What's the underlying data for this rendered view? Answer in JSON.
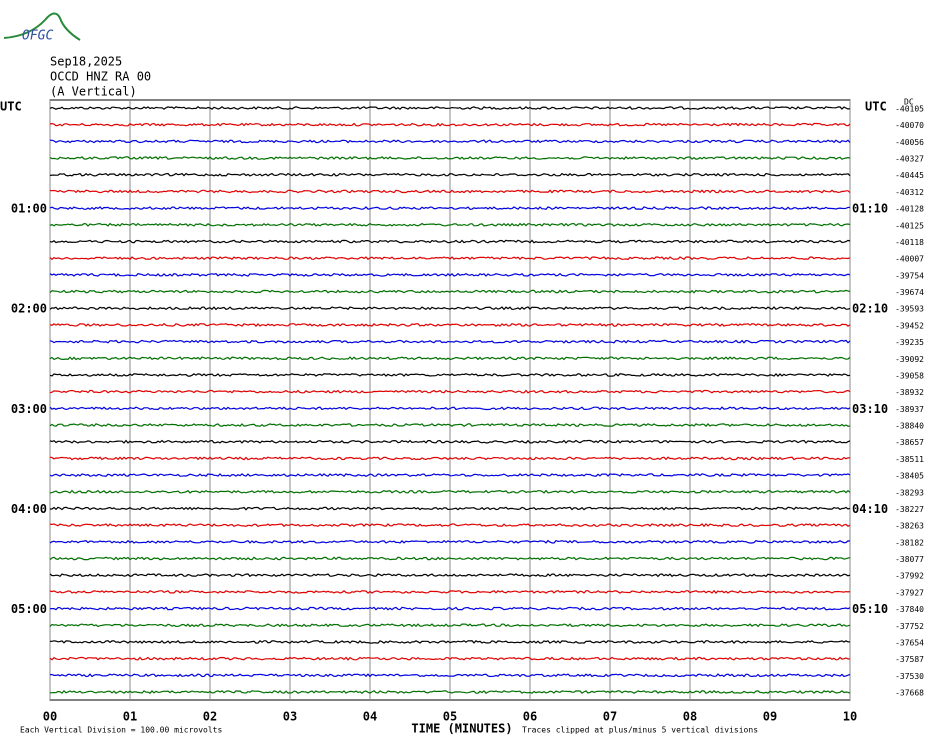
{
  "header": {
    "logo": "OFGC",
    "date": "Sep18,2025",
    "station": "OCCD HNZ RA 00",
    "component": "(A Vertical)"
  },
  "chart_data": {
    "type": "helicorder",
    "xlim": [
      0,
      10
    ],
    "xticks": [
      {
        "value": 0,
        "label": "00"
      },
      {
        "value": 1,
        "label": "01"
      },
      {
        "value": 2,
        "label": "02"
      },
      {
        "value": 3,
        "label": "03"
      },
      {
        "value": 4,
        "label": "04"
      },
      {
        "value": 5,
        "label": "05"
      },
      {
        "value": 6,
        "label": "06"
      },
      {
        "value": 7,
        "label": "07"
      },
      {
        "value": 8,
        "label": "08"
      },
      {
        "value": 9,
        "label": "09"
      },
      {
        "value": 10,
        "label": "10"
      }
    ],
    "xlabel": "TIME (MINUTES)",
    "left_title": "UTC",
    "right_title": "UTC",
    "offset_title": "DC",
    "colors": [
      "#000000",
      "#e00000",
      "#0000e0",
      "#007000"
    ],
    "left_labels": [
      null,
      null,
      null,
      null,
      null,
      null,
      "01:00",
      null,
      null,
      null,
      null,
      null,
      "02:00",
      null,
      null,
      null,
      null,
      null,
      "03:00",
      null,
      null,
      null,
      null,
      null,
      "04:00",
      null,
      null,
      null,
      null,
      null,
      "05:00",
      null,
      null,
      null,
      null,
      null
    ],
    "right_labels": [
      null,
      null,
      null,
      null,
      null,
      null,
      "01:10",
      null,
      null,
      null,
      null,
      null,
      "02:10",
      null,
      null,
      null,
      null,
      null,
      "03:10",
      null,
      null,
      null,
      null,
      null,
      "04:10",
      null,
      null,
      null,
      null,
      null,
      "05:10",
      null,
      null,
      null,
      null,
      null
    ],
    "offsets": [
      -40105,
      -40070,
      -40056,
      -40327,
      -40445,
      -40312,
      -40128,
      -40125,
      -40118,
      -40007,
      -39754,
      -39674,
      -39593,
      -39452,
      -39235,
      -39092,
      -39058,
      -38932,
      -38937,
      -38840,
      -38657,
      -38511,
      -38405,
      -38293,
      -38227,
      -38263,
      -38182,
      -38077,
      -37992,
      -37927,
      -37840,
      -37752,
      -37654,
      -37587,
      -37530,
      -37668
    ],
    "footer_scale": "Each Vertical Division =  100.00 microvolts",
    "footer_clip": "Traces clipped at plus/minus 5 vertical divisions"
  }
}
